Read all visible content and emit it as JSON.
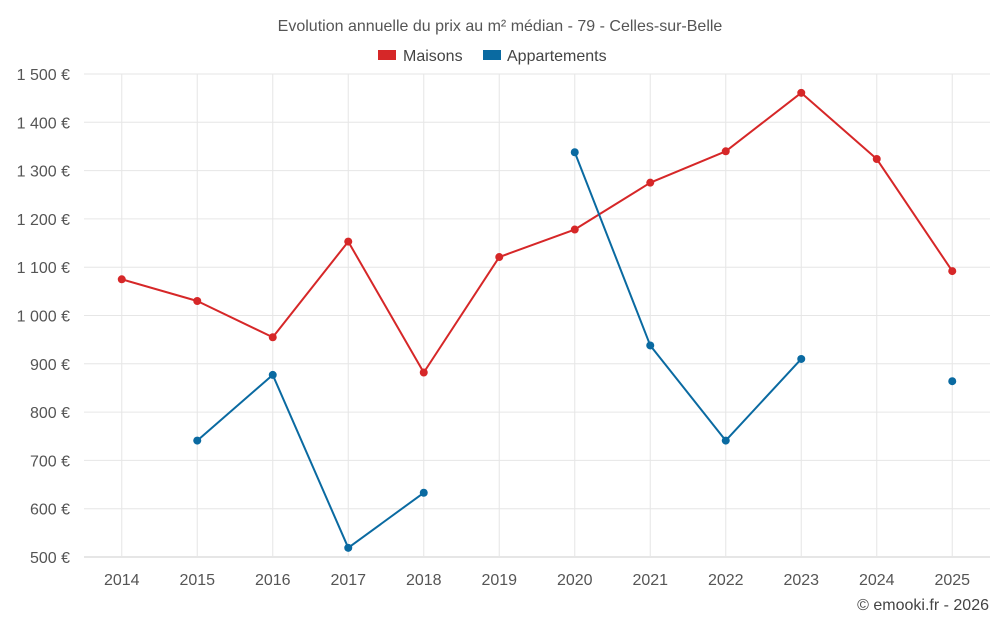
{
  "chart_data": {
    "type": "line",
    "title": "Evolution annuelle du prix au m² médian - 79 - Celles-sur-Belle",
    "categories": [
      "2014",
      "2015",
      "2016",
      "2017",
      "2018",
      "2019",
      "2020",
      "2021",
      "2022",
      "2023",
      "2024",
      "2025"
    ],
    "series": [
      {
        "name": "Maisons",
        "color": "#d62728",
        "values": [
          1075,
          1030,
          955,
          1153,
          882,
          1121,
          1178,
          1275,
          1340,
          1461,
          1324,
          1092
        ]
      },
      {
        "name": "Appartements",
        "color": "#0a6aa1",
        "values": [
          null,
          741,
          877,
          519,
          633,
          null,
          1338,
          938,
          741,
          910,
          null,
          864
        ]
      }
    ],
    "ylim": [
      500,
      1500
    ],
    "yticks": [
      "500 €",
      "600 €",
      "700 €",
      "800 €",
      "900 €",
      "1 000 €",
      "1 100 €",
      "1 200 €",
      "1 300 €",
      "1 400 €",
      "1 500 €"
    ],
    "ytick_values": [
      500,
      600,
      700,
      800,
      900,
      1000,
      1100,
      1200,
      1300,
      1400,
      1500
    ],
    "grid": true,
    "legend_position": "top-center",
    "xlabel": "",
    "ylabel": ""
  },
  "credit": "© emooki.fr - 2026"
}
